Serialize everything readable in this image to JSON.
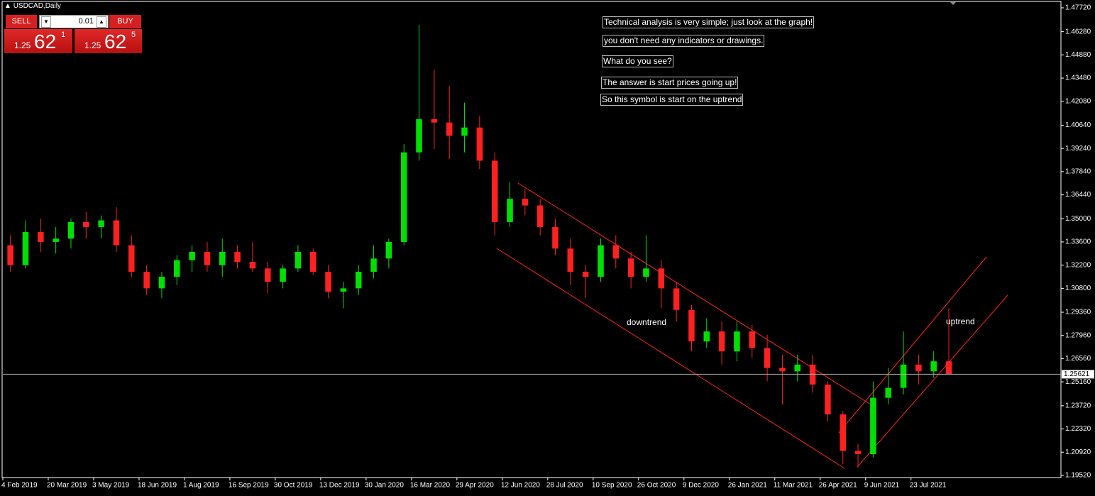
{
  "window": {
    "title": "USDCAD,Daily"
  },
  "trade_panel": {
    "sell": "SELL",
    "buy": "BUY",
    "lot": "0.01",
    "bid": {
      "prefix": "1.25",
      "big": "62",
      "sup": "1"
    },
    "ask": {
      "prefix": "1.25",
      "big": "62",
      "sup": "5"
    }
  },
  "chart_data": {
    "type": "candlestick",
    "annotations": [
      "Technical analysis is very simple; just look at the graph!",
      "you don't need any indicators or drawings.",
      "What do you see?",
      "The answer is start prices going up!",
      "So this symbol is start on the uptrend",
      "downtrend",
      "uptrend"
    ],
    "open": [
      1.334,
      1.322,
      1.342,
      1.336,
      1.338,
      1.348,
      1.345,
      1.349,
      1.334,
      1.318,
      1.308,
      1.315,
      1.325,
      1.33,
      1.322,
      1.33,
      1.324,
      1.32,
      1.312,
      1.32,
      1.33,
      1.318,
      1.306,
      1.308,
      1.318,
      1.326,
      1.336,
      1.39,
      1.41,
      1.408,
      1.4,
      1.405,
      1.385,
      1.348,
      1.362,
      1.358,
      1.345,
      1.332,
      1.318,
      1.315,
      1.334,
      1.326,
      1.315,
      1.32,
      1.308,
      1.295,
      1.276,
      1.282,
      1.27,
      1.282,
      1.272,
      1.26,
      1.258,
      1.262,
      1.25,
      1.232,
      1.21,
      1.208,
      1.242,
      1.248,
      1.262,
      1.258,
      1.264
    ],
    "high": [
      1.34,
      1.349,
      1.35,
      1.345,
      1.35,
      1.354,
      1.352,
      1.357,
      1.34,
      1.322,
      1.318,
      1.328,
      1.334,
      1.336,
      1.338,
      1.334,
      1.336,
      1.324,
      1.322,
      1.334,
      1.332,
      1.322,
      1.312,
      1.322,
      1.334,
      1.338,
      1.395,
      1.467,
      1.44,
      1.43,
      1.42,
      1.412,
      1.39,
      1.372,
      1.368,
      1.362,
      1.35,
      1.338,
      1.322,
      1.338,
      1.34,
      1.33,
      1.34,
      1.325,
      1.312,
      1.298,
      1.29,
      1.288,
      1.288,
      1.286,
      1.28,
      1.268,
      1.268,
      1.268,
      1.252,
      1.234,
      1.214,
      1.252,
      1.26,
      1.282,
      1.268,
      1.27,
      1.296
    ],
    "low": [
      1.318,
      1.32,
      1.33,
      1.329,
      1.332,
      1.338,
      1.338,
      1.33,
      1.315,
      1.304,
      1.302,
      1.31,
      1.318,
      1.318,
      1.315,
      1.32,
      1.318,
      1.305,
      1.308,
      1.318,
      1.316,
      1.302,
      1.296,
      1.304,
      1.314,
      1.32,
      1.334,
      1.385,
      1.392,
      1.386,
      1.39,
      1.38,
      1.34,
      1.345,
      1.352,
      1.34,
      1.328,
      1.31,
      1.302,
      1.312,
      1.32,
      1.308,
      1.312,
      1.296,
      1.288,
      1.27,
      1.272,
      1.262,
      1.264,
      1.266,
      1.252,
      1.238,
      1.252,
      1.245,
      1.228,
      1.202,
      1.2,
      1.206,
      1.238,
      1.244,
      1.25,
      1.254,
      1.258
    ],
    "close": [
      1.322,
      1.342,
      1.336,
      1.338,
      1.348,
      1.345,
      1.349,
      1.334,
      1.318,
      1.308,
      1.315,
      1.325,
      1.33,
      1.322,
      1.33,
      1.324,
      1.32,
      1.312,
      1.32,
      1.33,
      1.318,
      1.306,
      1.308,
      1.318,
      1.326,
      1.336,
      1.39,
      1.41,
      1.408,
      1.4,
      1.405,
      1.385,
      1.348,
      1.362,
      1.358,
      1.345,
      1.332,
      1.318,
      1.315,
      1.334,
      1.326,
      1.315,
      1.32,
      1.308,
      1.295,
      1.276,
      1.282,
      1.27,
      1.282,
      1.272,
      1.26,
      1.258,
      1.262,
      1.25,
      1.232,
      1.21,
      1.208,
      1.242,
      1.248,
      1.262,
      1.258,
      1.264,
      1.2562
    ],
    "up_color": "#00e000",
    "down_color": "#ff2020",
    "current_price": 1.25621,
    "xlim": [
      0,
      70
    ],
    "xticks": [
      {
        "value": 0,
        "label": "4 Feb 2019"
      },
      {
        "value": 3,
        "label": "20 Mar 2019"
      },
      {
        "value": 6,
        "label": "3 May 2019"
      },
      {
        "value": 9,
        "label": "18 Jun 2019"
      },
      {
        "value": 12,
        "label": "1 Aug 2019"
      },
      {
        "value": 15,
        "label": "16 Sep 2019"
      },
      {
        "value": 18,
        "label": "30 Oct 2019"
      },
      {
        "value": 21,
        "label": "13 Dec 2019"
      },
      {
        "value": 24,
        "label": "30 Jan 2020"
      },
      {
        "value": 27,
        "label": "16 Mar 2020"
      },
      {
        "value": 30,
        "label": "29 Apr 2020"
      },
      {
        "value": 33,
        "label": "12 Jun 2020"
      },
      {
        "value": 36,
        "label": "28 Jul 2020"
      },
      {
        "value": 39,
        "label": "10 Sep 2020"
      },
      {
        "value": 42,
        "label": "26 Oct 2020"
      },
      {
        "value": 45,
        "label": "9 Dec 2020"
      },
      {
        "value": 48,
        "label": "26 Jan 2021"
      },
      {
        "value": 51,
        "label": "11 Mar 2021"
      },
      {
        "value": 54,
        "label": "26 Apr 2021"
      },
      {
        "value": 57,
        "label": "9 Jun 2021"
      },
      {
        "value": 60,
        "label": "23 Jul 2021"
      }
    ],
    "ylim": [
      1.1939,
      1.4819
    ],
    "yticks": [
      {
        "value": 1.4772,
        "label": "1.47720"
      },
      {
        "value": 1.4628,
        "label": "1.46280"
      },
      {
        "value": 1.4488,
        "label": "1.44880"
      },
      {
        "value": 1.4348,
        "label": "1.43480"
      },
      {
        "value": 1.4208,
        "label": "1.42080"
      },
      {
        "value": 1.4064,
        "label": "1.40640"
      },
      {
        "value": 1.3924,
        "label": "1.39240"
      },
      {
        "value": 1.3784,
        "label": "1.37840"
      },
      {
        "value": 1.3644,
        "label": "1.36440"
      },
      {
        "value": 1.35,
        "label": "1.35000"
      },
      {
        "value": 1.336,
        "label": "1.33600"
      },
      {
        "value": 1.322,
        "label": "1.32200"
      },
      {
        "value": 1.308,
        "label": "1.30800"
      },
      {
        "value": 1.2936,
        "label": "1.29360"
      },
      {
        "value": 1.2796,
        "label": "1.27960"
      },
      {
        "value": 1.2656,
        "label": "1.26560"
      },
      {
        "value": 1.2516,
        "label": "1.25160"
      },
      {
        "value": 1.2372,
        "label": "1.23720"
      },
      {
        "value": 1.2232,
        "label": "1.22320"
      },
      {
        "value": 1.2092,
        "label": "1.20920"
      },
      {
        "value": 1.1952,
        "label": "1.19520"
      }
    ]
  }
}
